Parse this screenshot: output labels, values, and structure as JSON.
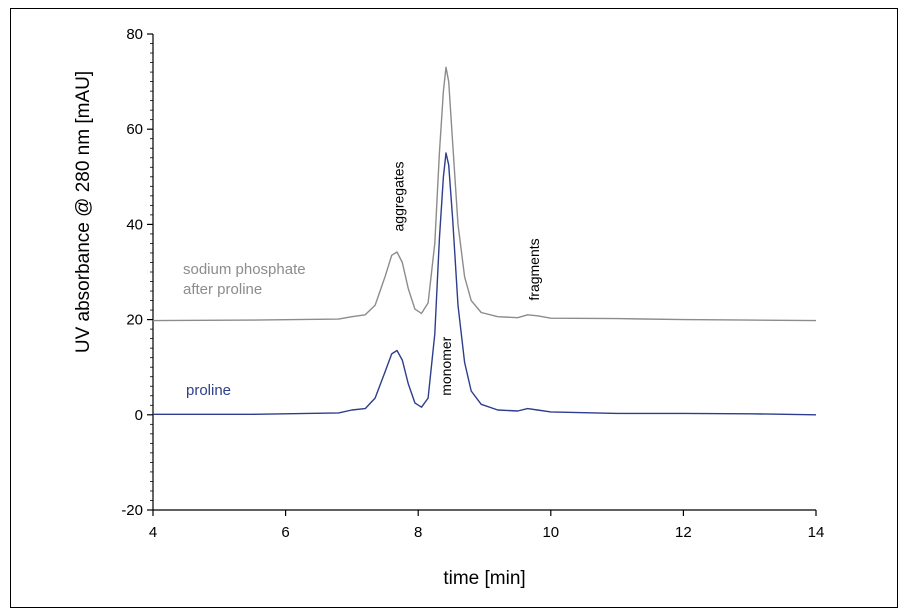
{
  "chart_data": {
    "type": "line",
    "xlabel": "time [min]",
    "ylabel": "UV absorbance @ 280 nm [mAU]",
    "xlim": [
      4,
      14
    ],
    "ylim": [
      -20,
      80
    ],
    "x_ticks": [
      "4",
      "6",
      "8",
      "10",
      "12",
      "14"
    ],
    "y_ticks": [
      "-20",
      "0",
      "20",
      "40",
      "60",
      "80"
    ],
    "grid": false,
    "series": [
      {
        "name": "sodium phosphate after proline",
        "label_lines": [
          "sodium phosphate",
          "after proline"
        ],
        "color": "#8c8c8c",
        "points": [
          [
            4.0,
            19.8
          ],
          [
            5.5,
            19.9
          ],
          [
            6.8,
            20.1
          ],
          [
            7.0,
            20.6
          ],
          [
            7.2,
            21.0
          ],
          [
            7.35,
            23.0
          ],
          [
            7.5,
            29.0
          ],
          [
            7.6,
            33.5
          ],
          [
            7.68,
            34.2
          ],
          [
            7.76,
            32.0
          ],
          [
            7.85,
            26.5
          ],
          [
            7.95,
            22.2
          ],
          [
            8.05,
            21.3
          ],
          [
            8.15,
            23.5
          ],
          [
            8.25,
            36.0
          ],
          [
            8.32,
            55.0
          ],
          [
            8.38,
            68.0
          ],
          [
            8.42,
            73.0
          ],
          [
            8.46,
            70.0
          ],
          [
            8.52,
            57.0
          ],
          [
            8.6,
            40.0
          ],
          [
            8.7,
            29.0
          ],
          [
            8.8,
            24.0
          ],
          [
            8.95,
            21.5
          ],
          [
            9.2,
            20.6
          ],
          [
            9.5,
            20.4
          ],
          [
            9.65,
            21.0
          ],
          [
            9.8,
            20.8
          ],
          [
            10.0,
            20.3
          ],
          [
            11.0,
            20.2
          ],
          [
            12.0,
            20.0
          ],
          [
            13.0,
            19.9
          ],
          [
            14.0,
            19.8
          ]
        ]
      },
      {
        "name": "proline",
        "label_lines": [
          "proline"
        ],
        "color": "#2e3d8c",
        "points": [
          [
            4.0,
            0.1
          ],
          [
            5.5,
            0.1
          ],
          [
            6.8,
            0.4
          ],
          [
            7.0,
            1.0
          ],
          [
            7.2,
            1.3
          ],
          [
            7.35,
            3.5
          ],
          [
            7.5,
            9.0
          ],
          [
            7.6,
            12.8
          ],
          [
            7.68,
            13.5
          ],
          [
            7.76,
            11.5
          ],
          [
            7.85,
            6.5
          ],
          [
            7.95,
            2.5
          ],
          [
            8.05,
            1.6
          ],
          [
            8.15,
            3.5
          ],
          [
            8.25,
            17.0
          ],
          [
            8.32,
            37.0
          ],
          [
            8.38,
            50.0
          ],
          [
            8.42,
            55.0
          ],
          [
            8.46,
            52.5
          ],
          [
            8.52,
            41.0
          ],
          [
            8.6,
            23.0
          ],
          [
            8.7,
            11.0
          ],
          [
            8.8,
            5.0
          ],
          [
            8.95,
            2.2
          ],
          [
            9.2,
            1.0
          ],
          [
            9.5,
            0.8
          ],
          [
            9.65,
            1.3
          ],
          [
            9.8,
            1.0
          ],
          [
            10.0,
            0.6
          ],
          [
            11.0,
            0.3
          ],
          [
            12.0,
            0.3
          ],
          [
            13.0,
            0.2
          ],
          [
            14.0,
            0.0
          ]
        ]
      }
    ],
    "annotations": [
      {
        "text": "aggregates",
        "x": 7.7,
        "y": 38.5
      },
      {
        "text": "monomer",
        "x": 8.42,
        "y": 4.0
      },
      {
        "text": "fragments",
        "x": 9.75,
        "y": 24.0
      }
    ]
  }
}
